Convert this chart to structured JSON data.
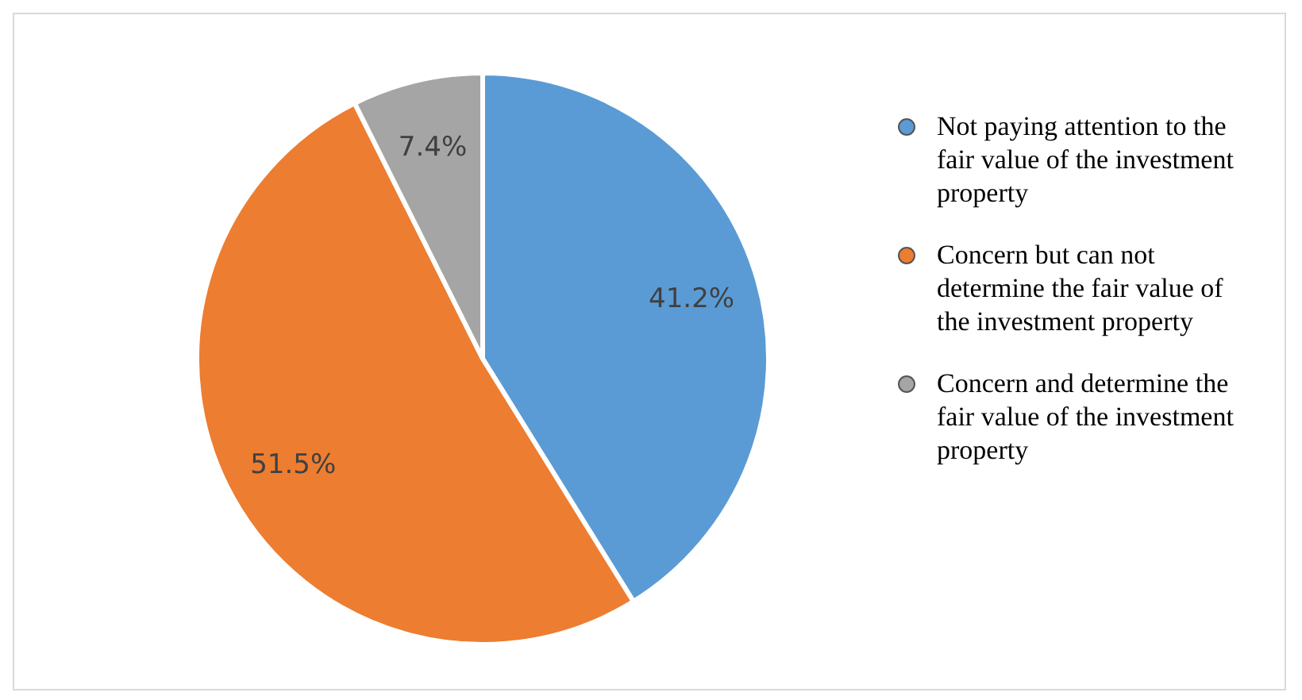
{
  "chart_data": {
    "type": "pie",
    "categories": [
      "Not paying attention to the fair value of the investment property",
      "Concern but can not determine the fair value of the investment property",
      "Concern and determine the fair value of the investment property"
    ],
    "values": [
      41.2,
      51.5,
      7.4
    ],
    "value_labels": [
      "41.2%",
      "51.5%",
      "7.4%"
    ],
    "colors": [
      "#5b9bd5",
      "#ed7d31",
      "#a5a5a5"
    ],
    "legend": "right"
  }
}
